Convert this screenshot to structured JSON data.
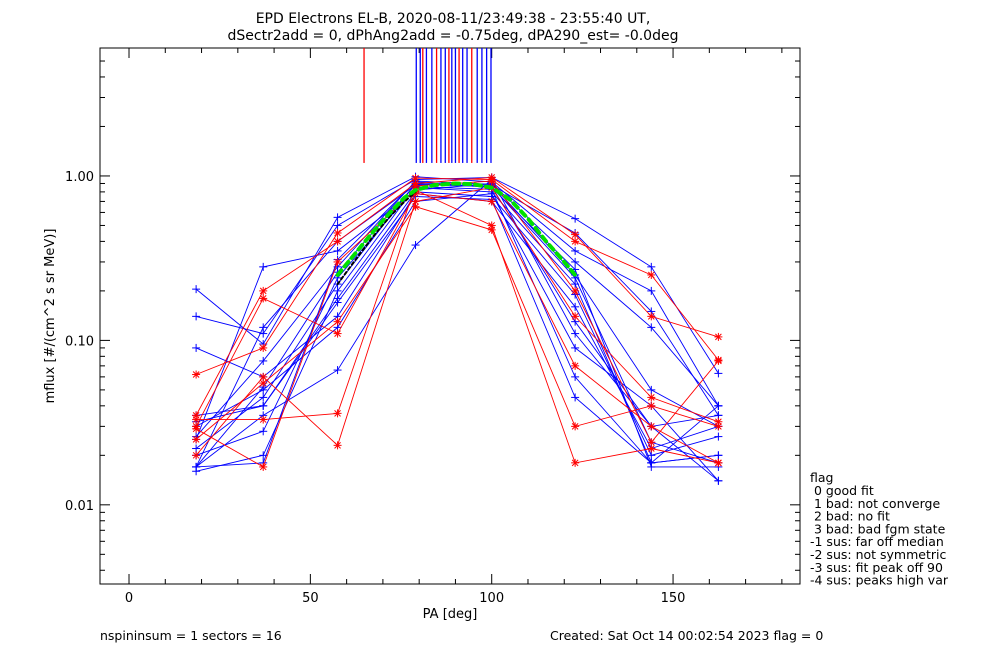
{
  "chart_data": {
    "type": "line",
    "title_line1": "EPD Electrons EL-B, 2020-08-11/23:49:38 - 23:55:40 UT,",
    "title_line2": "dSectr2add = 0, dPhAng2add = -0.75deg, dPA290_est=  -0.0deg",
    "xlabel": "PA [deg]",
    "ylabel": "mflux [#/(cm^2 s sr MeV)]",
    "xlim": [
      -8,
      185
    ],
    "ylim": [
      0.0033,
      6
    ],
    "yscale": "log",
    "x_ticks": [
      0,
      50,
      100,
      150
    ],
    "x_tick_labels": [
      "0",
      "50",
      "100",
      "150"
    ],
    "y_ticks": [
      0.01,
      0.1,
      1.0
    ],
    "y_tick_labels": [
      "0.01",
      "0.10",
      "1.00"
    ],
    "pa_bins": [
      18.5,
      37,
      57.5,
      79,
      100,
      123,
      144,
      162.5
    ],
    "colors": {
      "blue": "#0000ff",
      "red": "#ff0000",
      "green": "#00e000",
      "black": "#000000"
    },
    "series": [
      {
        "color": "blue",
        "values": [
          0.017,
          0.018,
          0.31,
          0.92,
          0.85,
          0.27,
          0.017,
          0.017
        ]
      },
      {
        "color": "blue",
        "values": [
          0.02,
          0.028,
          0.24,
          0.85,
          0.8,
          0.22,
          0.018,
          0.02
        ]
      },
      {
        "color": "blue",
        "values": [
          0.035,
          0.04,
          0.18,
          0.8,
          0.75,
          0.19,
          0.02,
          0.026
        ]
      },
      {
        "color": "blue",
        "values": [
          0.09,
          0.06,
          0.14,
          0.78,
          0.7,
          0.16,
          0.022,
          0.03
        ]
      },
      {
        "color": "blue",
        "values": [
          0.14,
          0.11,
          0.5,
          0.95,
          0.98,
          0.55,
          0.28,
          0.063
        ]
      },
      {
        "color": "blue",
        "values": [
          0.205,
          0.095,
          0.56,
          0.99,
          0.92,
          0.35,
          0.2,
          0.04
        ]
      },
      {
        "color": "blue",
        "values": [
          0.017,
          0.12,
          0.4,
          0.88,
          0.88,
          0.45,
          0.15,
          0.035
        ]
      },
      {
        "color": "blue",
        "values": [
          0.025,
          0.28,
          0.35,
          0.82,
          0.9,
          0.3,
          0.12,
          0.04
        ]
      },
      {
        "color": "blue",
        "values": [
          0.03,
          0.05,
          0.12,
          0.7,
          0.78,
          0.09,
          0.04,
          0.014
        ]
      },
      {
        "color": "blue",
        "values": [
          0.017,
          0.035,
          0.066,
          0.38,
          0.95,
          0.11,
          0.03,
          0.014
        ]
      },
      {
        "color": "blue",
        "values": [
          0.022,
          0.045,
          0.22,
          0.9,
          0.86,
          0.24,
          0.024,
          0.018
        ]
      },
      {
        "color": "blue",
        "values": [
          0.026,
          0.075,
          0.28,
          0.93,
          0.89,
          0.25,
          0.05,
          0.03
        ]
      },
      {
        "color": "blue",
        "values": [
          0.016,
          0.02,
          0.2,
          0.86,
          0.83,
          0.06,
          0.018,
          0.04
        ]
      },
      {
        "color": "blue",
        "values": [
          0.017,
          0.052,
          0.26,
          0.89,
          0.86,
          0.13,
          0.03,
          0.035
        ]
      },
      {
        "color": "blue",
        "values": [
          0.032,
          0.04,
          0.17,
          0.75,
          0.72,
          0.045,
          0.018,
          0.02
        ]
      },
      {
        "color": "red",
        "values": [
          0.062,
          0.09,
          0.45,
          0.97,
          0.95,
          0.4,
          0.25,
          0.076
        ]
      },
      {
        "color": "red",
        "values": [
          0.035,
          0.2,
          0.4,
          0.9,
          0.98,
          0.44,
          0.14,
          0.105
        ]
      },
      {
        "color": "red",
        "values": [
          0.029,
          0.017,
          0.3,
          0.82,
          0.5,
          0.018,
          0.022,
          0.018
        ]
      },
      {
        "color": "red",
        "values": [
          0.025,
          0.055,
          0.13,
          0.65,
          0.47,
          0.03,
          0.04,
          0.03
        ]
      },
      {
        "color": "red",
        "values": [
          0.03,
          0.18,
          0.11,
          0.78,
          0.7,
          0.07,
          0.03,
          0.018
        ]
      },
      {
        "color": "red",
        "values": [
          0.02,
          0.06,
          0.023,
          0.7,
          0.85,
          0.14,
          0.045,
          0.032
        ]
      },
      {
        "color": "red",
        "values": [
          0.033,
          0.033,
          0.036,
          0.87,
          0.93,
          0.2,
          0.024,
          0.075
        ]
      }
    ],
    "fit_curve_green": {
      "x": [
        57.5,
        62,
        67,
        72,
        76,
        79,
        84,
        90,
        95,
        100,
        105,
        110,
        115,
        120,
        123
      ],
      "y": [
        0.25,
        0.33,
        0.45,
        0.6,
        0.74,
        0.82,
        0.88,
        0.9,
        0.89,
        0.85,
        0.72,
        0.55,
        0.4,
        0.3,
        0.25
      ]
    },
    "fit_curve_black": {
      "x": [
        57.5,
        62,
        67,
        72,
        76,
        79
      ],
      "y": [
        0.22,
        0.3,
        0.42,
        0.57,
        0.7,
        0.8
      ]
    },
    "vertical_markers": [
      {
        "pa": 64.8,
        "color": "red",
        "y_top": 6,
        "y_bottom": 1.2
      },
      {
        "pa": 79.2,
        "color": "blue",
        "y_top": 6,
        "y_bottom": 1.2
      },
      {
        "pa": 80.3,
        "color": "blue",
        "y_top": 6,
        "y_bottom": 1.2
      },
      {
        "pa": 81.0,
        "color": "red",
        "y_top": 6,
        "y_bottom": 1.2
      },
      {
        "pa": 82.0,
        "color": "blue",
        "y_top": 6,
        "y_bottom": 1.2
      },
      {
        "pa": 83.5,
        "color": "blue",
        "y_top": 6,
        "y_bottom": 1.2
      },
      {
        "pa": 84.8,
        "color": "red",
        "y_top": 6,
        "y_bottom": 1.2
      },
      {
        "pa": 86.0,
        "color": "blue",
        "y_top": 6,
        "y_bottom": 1.2
      },
      {
        "pa": 87.2,
        "color": "blue",
        "y_top": 6,
        "y_bottom": 1.2
      },
      {
        "pa": 88.2,
        "color": "red",
        "y_top": 6,
        "y_bottom": 1.2
      },
      {
        "pa": 89.0,
        "color": "blue",
        "y_top": 6,
        "y_bottom": 1.2
      },
      {
        "pa": 90.0,
        "color": "blue",
        "y_top": 6,
        "y_bottom": 1.2
      },
      {
        "pa": 91.0,
        "color": "red",
        "y_top": 6,
        "y_bottom": 1.2
      },
      {
        "pa": 92.0,
        "color": "blue",
        "y_top": 6,
        "y_bottom": 1.2
      },
      {
        "pa": 93.2,
        "color": "blue",
        "y_top": 6,
        "y_bottom": 1.2
      },
      {
        "pa": 94.5,
        "color": "red",
        "y_top": 6,
        "y_bottom": 1.2
      },
      {
        "pa": 96.0,
        "color": "blue",
        "y_top": 6,
        "y_bottom": 1.2
      },
      {
        "pa": 97.3,
        "color": "blue",
        "y_top": 6,
        "y_bottom": 1.2
      },
      {
        "pa": 98.6,
        "color": "blue",
        "y_top": 6,
        "y_bottom": 1.2
      },
      {
        "pa": 99.8,
        "color": "blue",
        "y_top": 6,
        "y_bottom": 1.2
      }
    ],
    "legend": {
      "title": "flag",
      "entries": [
        " 0 good fit",
        " 1 bad: not converge",
        " 2 bad: no fit",
        " 3 bad: bad fgm state",
        "-1 sus: far off median",
        "-2 sus: not symmetric",
        "-3 sus: fit peak off 90",
        "-4 sus: peaks high var"
      ]
    },
    "footer": {
      "left": "nspininsum =  1  sectors = 16",
      "right": "Created: Sat Oct 14 00:02:54 2023   flag = 0"
    }
  }
}
